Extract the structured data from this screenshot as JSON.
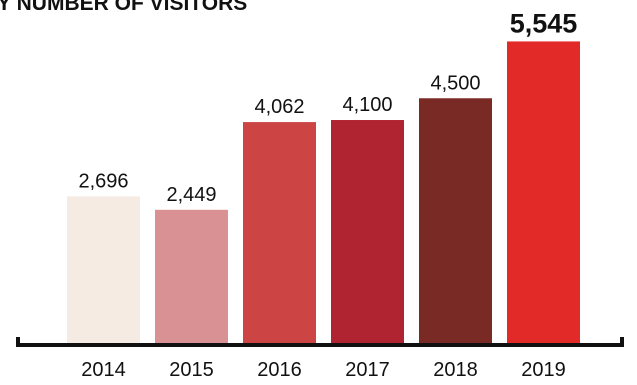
{
  "chart_data": {
    "type": "bar",
    "title": "BY NUMBER OF VISITORS",
    "xlabel": "",
    "ylabel": "",
    "categories": [
      "2014",
      "2015",
      "2016",
      "2017",
      "2018",
      "2019"
    ],
    "values": [
      2696,
      2449,
      4062,
      4100,
      4500,
      5545
    ],
    "value_labels": [
      "2,696",
      "2,449",
      "4,062",
      "4,100",
      "4,500",
      "5,545"
    ],
    "bar_colors": [
      "#f5ebe3",
      "#d99194",
      "#cc4444",
      "#b02432",
      "#7a2a24",
      "#e22a28"
    ],
    "highlight_index": 5,
    "ylim": [
      0,
      5700
    ],
    "grid": false,
    "legend": "none"
  }
}
